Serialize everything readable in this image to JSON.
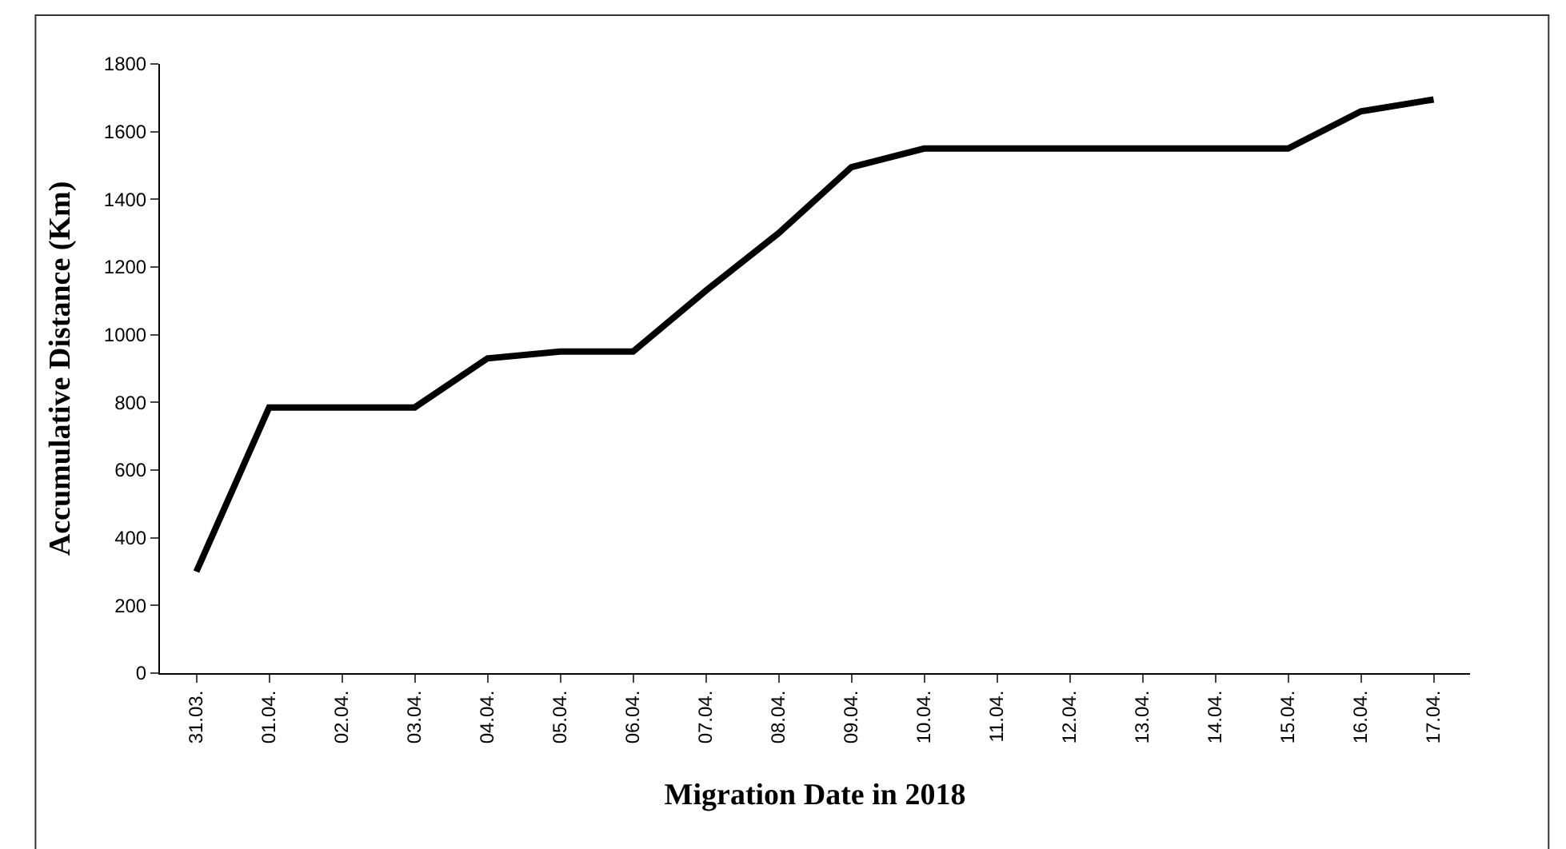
{
  "chart_data": {
    "type": "line",
    "xlabel": "Migration Date in 2018",
    "ylabel": "Accumulative Distance (Km)",
    "categories": [
      "31.03.",
      "01.04.",
      "02.04.",
      "03.04.",
      "04.04.",
      "05.04.",
      "06.04.",
      "07.04.",
      "08.04.",
      "09.04.",
      "10.04.",
      "11.04.",
      "12.04.",
      "13.04.",
      "14.04.",
      "15.04.",
      "16.04.",
      "17.04."
    ],
    "series": [
      {
        "color": "#000000",
        "values": [
          300,
          785,
          785,
          785,
          930,
          950,
          950,
          1130,
          1300,
          1495,
          1550,
          1550,
          1550,
          1550,
          1550,
          1550,
          1660,
          1695
        ]
      }
    ],
    "ylim": [
      0,
      1800
    ],
    "yticks": [
      0,
      200,
      400,
      600,
      800,
      1000,
      1200,
      1400,
      1600,
      1800
    ],
    "marker": "none",
    "line_style": "solid"
  }
}
